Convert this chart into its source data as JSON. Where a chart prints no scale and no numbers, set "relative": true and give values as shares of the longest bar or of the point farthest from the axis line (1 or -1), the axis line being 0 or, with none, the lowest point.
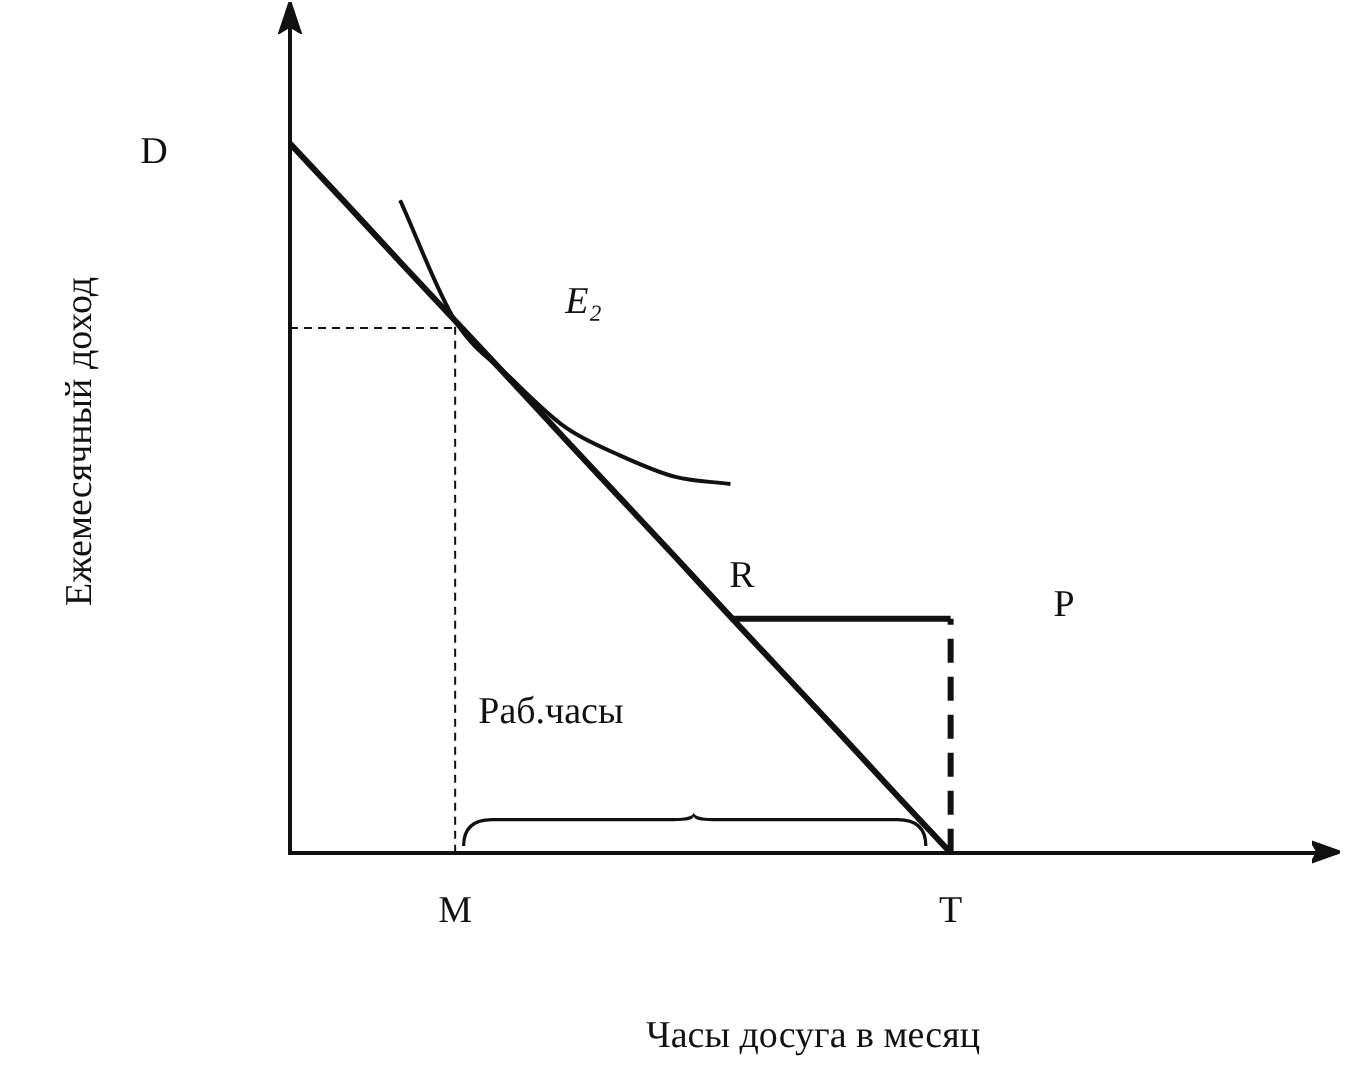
{
  "chart_data": {
    "type": "line",
    "relative": true,
    "xlabel": "Часы досуга в месяц",
    "ylabel": "Ежемесячный доход",
    "categories": [
      null,
      null,
      null,
      "M",
      null,
      null,
      null,
      null,
      null,
      null,
      null,
      null,
      "T",
      null,
      null,
      null,
      null,
      null,
      null,
      null
    ],
    "grid": false,
    "legend": false,
    "marker": "none",
    "series": [
      {
        "color": "#111111",
        "values": [
          1,
          0.917,
          0.833,
          0.75,
          0.667,
          0.583,
          0.5,
          0.417,
          0.333,
          0.25,
          0.167,
          0.083,
          0,
          null,
          null,
          null,
          null,
          null,
          null,
          null
        ],
        "line_style": "solid"
      },
      {
        "name": "E₂",
        "color": "#111111",
        "values": [
          null,
          null,
          0.92,
          0.75,
          0.67,
          0.6,
          0.56,
          0.53,
          0.52,
          null,
          null,
          null,
          null,
          null,
          null,
          null,
          null,
          null,
          null,
          null
        ],
        "line_style": "solid"
      },
      {
        "color": "#111111",
        "values": [
          null,
          null,
          null,
          null,
          null,
          null,
          null,
          null,
          0.33,
          0.33,
          0.33,
          0.33,
          0.33,
          null,
          null,
          null,
          null,
          null,
          null,
          null
        ],
        "line_style": "solid"
      },
      {
        "color": "#111111",
        "values": [
          0.74,
          0.74,
          0.74,
          0.74,
          null,
          null,
          null,
          null,
          null,
          null,
          null,
          null,
          null,
          null,
          null,
          null,
          null,
          null,
          null,
          null
        ],
        "line_style": "dotted"
      }
    ],
    "ref_lines": [
      {
        "axis": "x",
        "value": "M",
        "line_style": "dotted",
        "color": "#111111"
      },
      {
        "axis": "x",
        "value": "T",
        "line_style": "dashed",
        "color": "#111111"
      }
    ],
    "annotations": [
      "D",
      "R",
      "P",
      "Раб.часы"
    ]
  }
}
